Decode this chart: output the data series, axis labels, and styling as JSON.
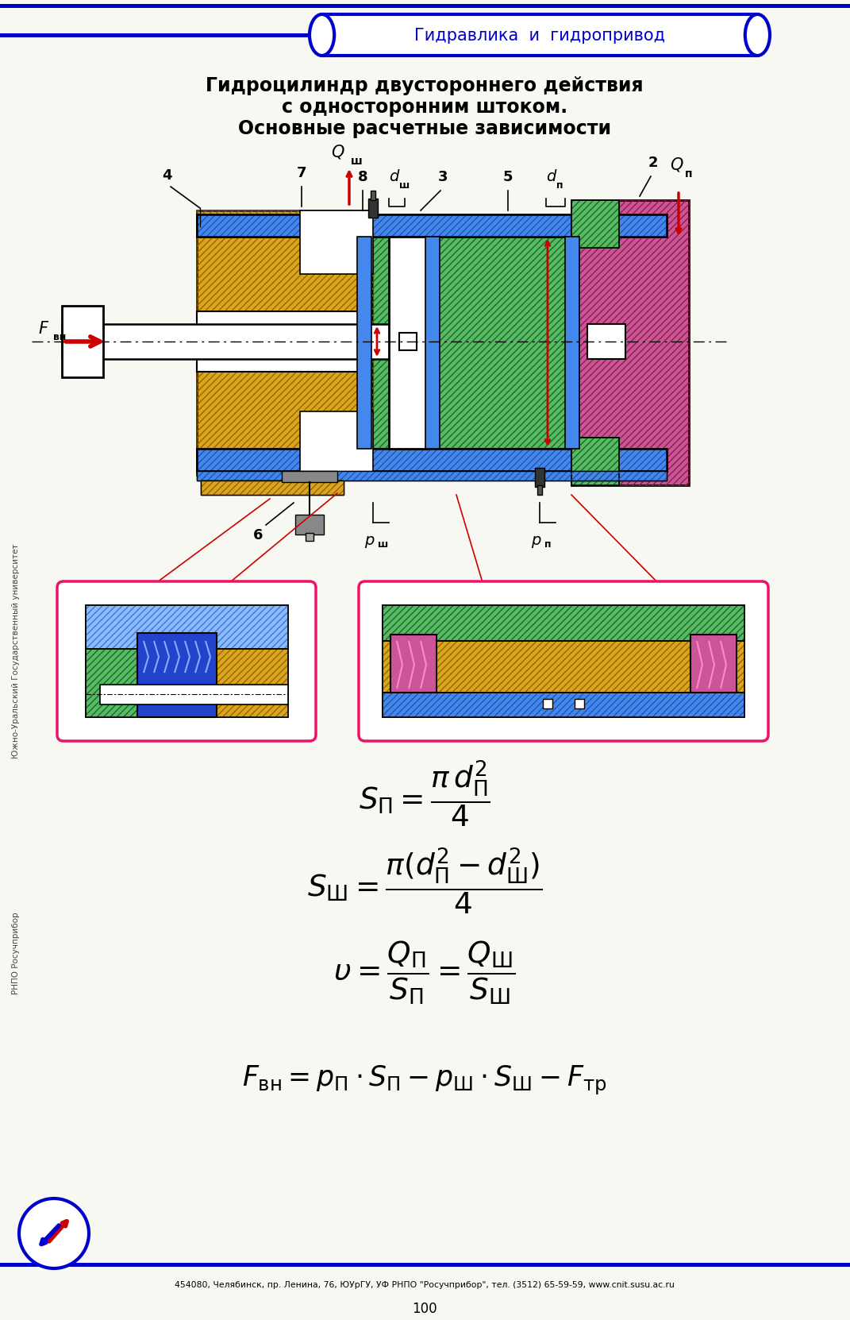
{
  "title_line1": "Гидроцилиндр двустороннего действия",
  "title_line2": "с односторонним штоком.",
  "title_line3": "Основные расчетные зависимости",
  "header_text": "Гидравлика  и  гидропривод",
  "footer_text": "454080, Челябинск, пр. Ленина, 76, ЮУрГУ, УФ РНПО \"Росучприбор\", тел. (3512) 65-59-59, www.cnit.susu.ac.ru",
  "page_number": "100",
  "left_label": "Южно-Уральский Государственный университет",
  "left_label2": "РНПО Росучприбор",
  "background_color": "#f8f8f3",
  "blue_border": "#0000CC",
  "black": "#000000",
  "red": "#CC0000",
  "gold": "#DAA520",
  "blue_fill": "#4488EE",
  "light_blue": "#88BBFF",
  "green_fill": "#55BB66",
  "pink_fill": "#CC5599",
  "white": "#FFFFFF",
  "gray": "#888888"
}
